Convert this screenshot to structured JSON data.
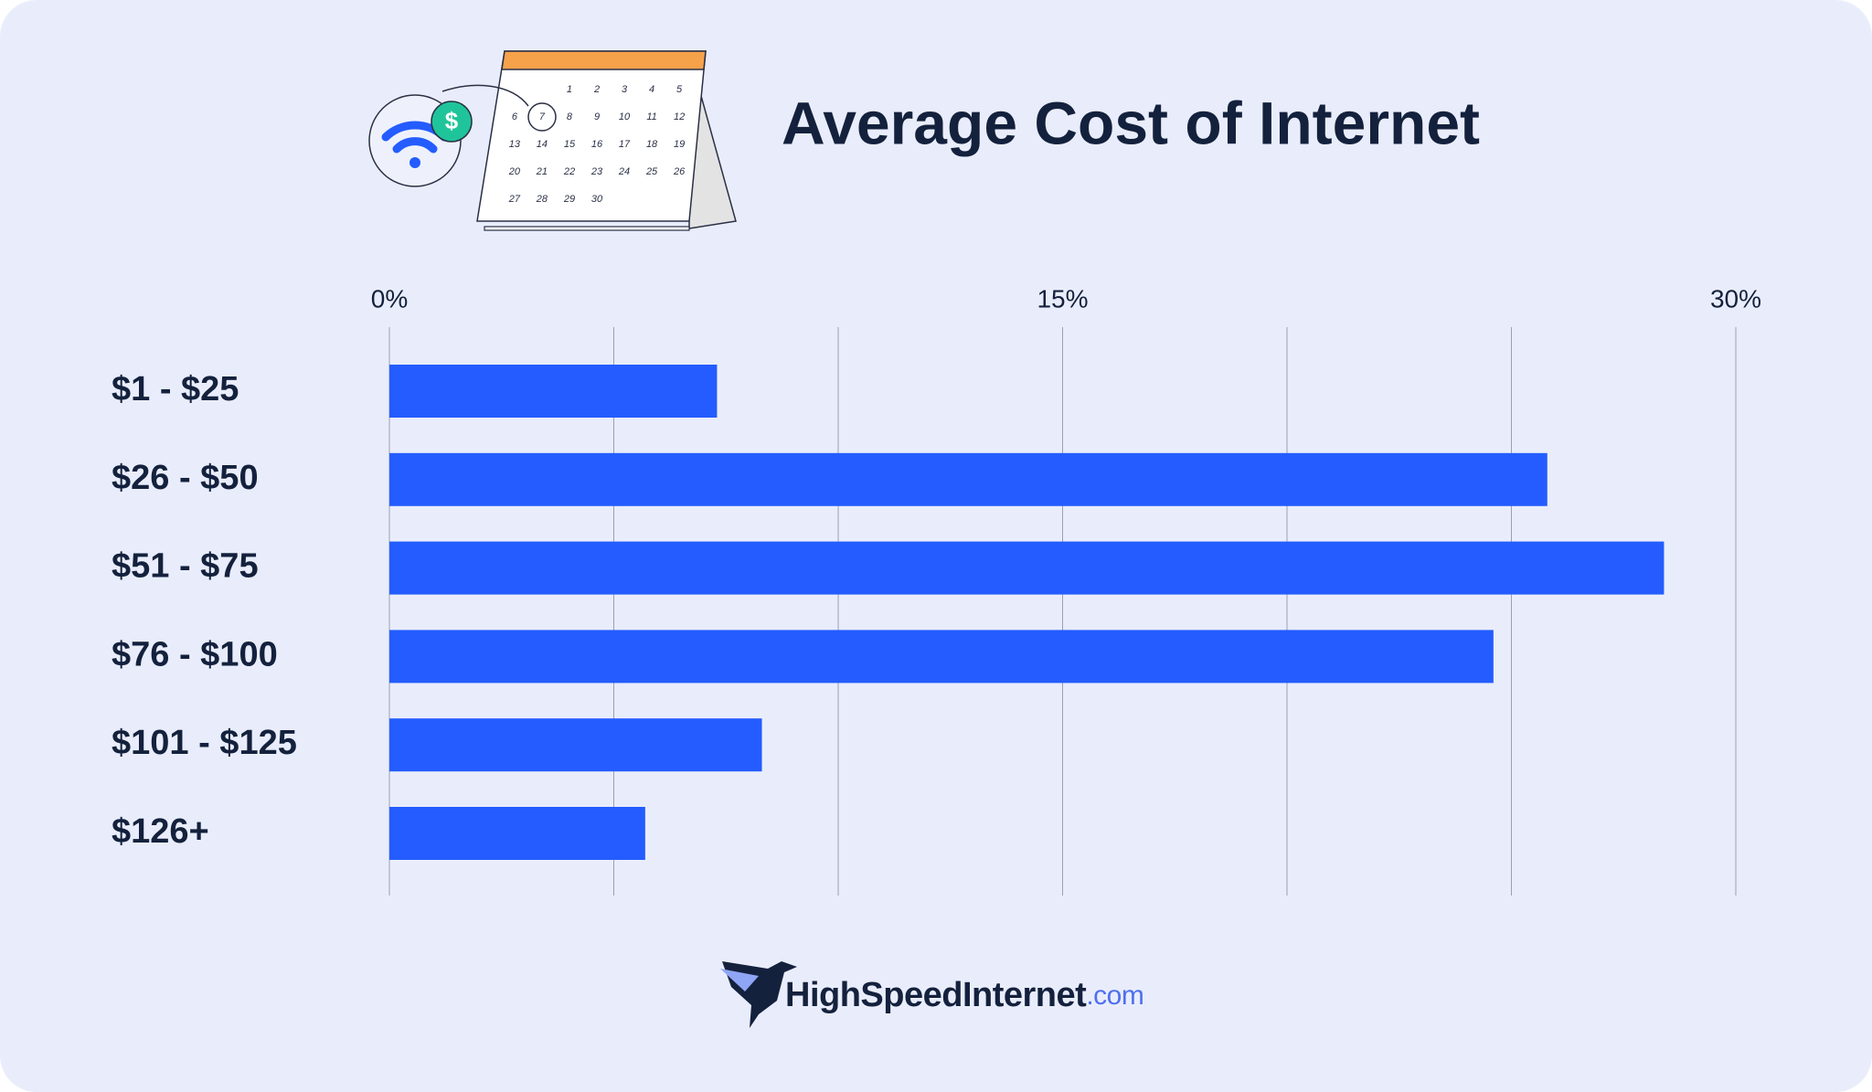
{
  "chart_data": {
    "type": "bar",
    "orientation": "horizontal",
    "title": "Average Cost of Internet",
    "categories": [
      "$1 - $25",
      "$26 - $50",
      "$51 - $75",
      "$76 - $100",
      "$101 - $125",
      "$126+"
    ],
    "values": [
      7.3,
      25.8,
      28.4,
      24.6,
      8.3,
      5.7
    ],
    "color": "#245cff",
    "xlim": [
      0,
      30
    ],
    "xticks": [
      {
        "value": 0,
        "label": "0%"
      },
      {
        "value": 15,
        "label": "15%"
      },
      {
        "value": 30,
        "label": "30%"
      }
    ],
    "minor_xticks": [
      5,
      10,
      20,
      25
    ],
    "grid": true
  },
  "illustration": {
    "coin_symbol": "$",
    "calendar_days": [
      1,
      2,
      3,
      4,
      5,
      6,
      7,
      8,
      9,
      10,
      11,
      12,
      13,
      14,
      15,
      16,
      17,
      18,
      19,
      20,
      21,
      22,
      23,
      24,
      25,
      26,
      27,
      28,
      29,
      30
    ]
  },
  "logo": {
    "name": "HighSpeedInternet",
    "suffix": ".com"
  }
}
